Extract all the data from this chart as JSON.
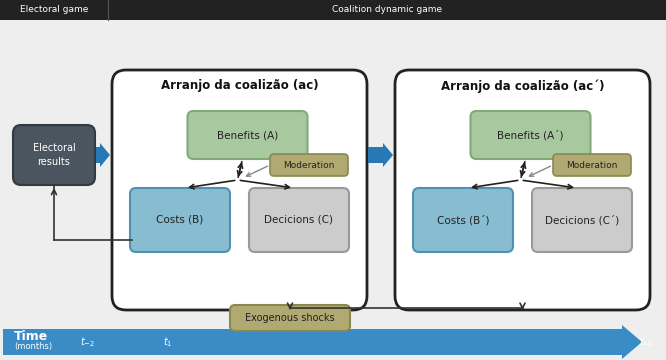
{
  "bg_color": "#eeeeee",
  "header_bg": "#222222",
  "header_text_color": "#ffffff",
  "electoral_header": "Electoral game",
  "coalition_header": "Coalition dynamic game",
  "box1_title": "Arranjo da coalizão (ac)",
  "box2_title": "Arranjo da coalizão (ac´)",
  "electoral_results_text": "Electoral\nresults",
  "benefits_a_text": "Benefits (A)",
  "benefits_a2_text": "Benefits (A´)",
  "costs_b_text": "Costs (B)",
  "costs_b2_text": "Costs (B´)",
  "decisions_c_text": "Decicions (C)",
  "decisions_c2_text": "Decicions (C´)",
  "moderation_text": "Moderation",
  "moderation2_text": "Moderation",
  "exogenous_text": "Exogenous shocks",
  "time_label": "Time",
  "months_label": "(months)",
  "color_green_box": "#a8c8a0",
  "color_green_border": "#80aa78",
  "color_blue_box": "#88bcd0",
  "color_blue_border": "#5090b0",
  "color_gray_box": "#cccccc",
  "color_gray_border": "#999999",
  "color_olive_box": "#b0aa72",
  "color_olive_border": "#888850",
  "color_dark_box": "#4a5560",
  "color_dark_border": "#333a40",
  "color_arrow_blue": "#2778b5",
  "color_timeline": "#3a8cc7",
  "white": "#ffffff",
  "near_black": "#222222"
}
